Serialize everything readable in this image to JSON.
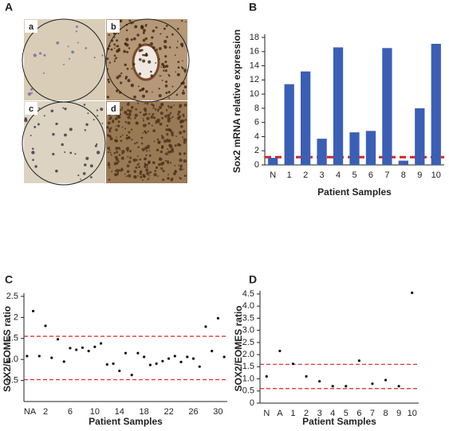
{
  "panel_labels": [
    "A",
    "B",
    "C",
    "D"
  ],
  "image_panel": {
    "labels": [
      "a",
      "b",
      "c",
      "d"
    ]
  },
  "chart_data": [
    {
      "type": "bar",
      "y_label": "Sox2 mRNA relative expression",
      "x_label": "Patient Samples",
      "categories": [
        "N",
        "1",
        "2",
        "3",
        "4",
        "5",
        "6",
        "7",
        "8",
        "9",
        "10"
      ],
      "values": [
        1.0,
        11.4,
        13.2,
        3.7,
        16.6,
        4.6,
        4.8,
        16.5,
        0.6,
        8.0,
        17.1
      ],
      "color": "#3a5fb5",
      "ylim": [
        0,
        18
      ],
      "yticks": [
        0,
        2,
        4,
        6,
        8,
        10,
        12,
        14,
        16,
        18
      ],
      "reference_lines": [
        1.1
      ],
      "reference_color": "#e02020"
    },
    {
      "type": "scatter",
      "y_label": "SOX2/EOMES ratio",
      "x_label": "Patient Samples",
      "categories": [
        "N",
        "A",
        null,
        "2",
        null,
        null,
        null,
        "6",
        null,
        null,
        null,
        "10",
        null,
        null,
        null,
        "14",
        null,
        null,
        null,
        "18",
        null,
        null,
        null,
        "22",
        null,
        null,
        null,
        "26",
        null,
        null,
        null,
        "30",
        null
      ],
      "values": [
        1.08,
        2.15,
        1.08,
        1.8,
        1.04,
        1.48,
        0.95,
        1.27,
        1.23,
        1.28,
        1.2,
        1.3,
        1.38,
        0.88,
        0.9,
        0.73,
        1.15,
        0.63,
        1.15,
        1.06,
        0.87,
        0.9,
        0.96,
        1.02,
        1.08,
        0.94,
        1.06,
        1.02,
        0.83,
        1.78,
        1.2,
        1.98,
        1.06
      ],
      "color": "#111111",
      "ylim": [
        0,
        2.5
      ],
      "yticks": [
        {
          "value": 0.5,
          "label": "0.5"
        },
        {
          "value": 1,
          "label": "1.0"
        },
        {
          "value": 1.5,
          "label": "1.5"
        },
        2,
        {
          "value": 2.5,
          "label": "2.5"
        }
      ],
      "reference_lines": [
        1.55,
        0.52
      ],
      "reference_color": "#e02020"
    },
    {
      "type": "scatter",
      "y_label": "SOX2/EOMES ratio",
      "x_label": "Patient Samples",
      "categories": [
        "N",
        "A",
        "1",
        "2",
        "3",
        "4",
        "5",
        "6",
        "7",
        "8",
        "9",
        "10"
      ],
      "values": [
        1.1,
        2.15,
        1.62,
        1.1,
        0.9,
        0.7,
        0.7,
        1.75,
        0.8,
        0.95,
        0.7,
        4.55
      ],
      "color": "#111111",
      "ylim": [
        0,
        4.5
      ],
      "yticks": [
        0,
        {
          "value": 0.5,
          "label": "0.5"
        },
        {
          "value": 1,
          "label": "1.0"
        },
        {
          "value": 1.5,
          "label": "1.5"
        },
        {
          "value": 2,
          "label": "2.0"
        },
        {
          "value": 2.5,
          "label": "2.5"
        },
        {
          "value": 3,
          "label": "3.0"
        },
        {
          "value": 3.5,
          "label": "3.5"
        },
        {
          "value": 4,
          "label": "4.0"
        },
        {
          "value": 4.5,
          "label": "4.5"
        }
      ],
      "reference_lines": [
        1.6,
        0.6
      ],
      "reference_color": "#e02020"
    }
  ]
}
